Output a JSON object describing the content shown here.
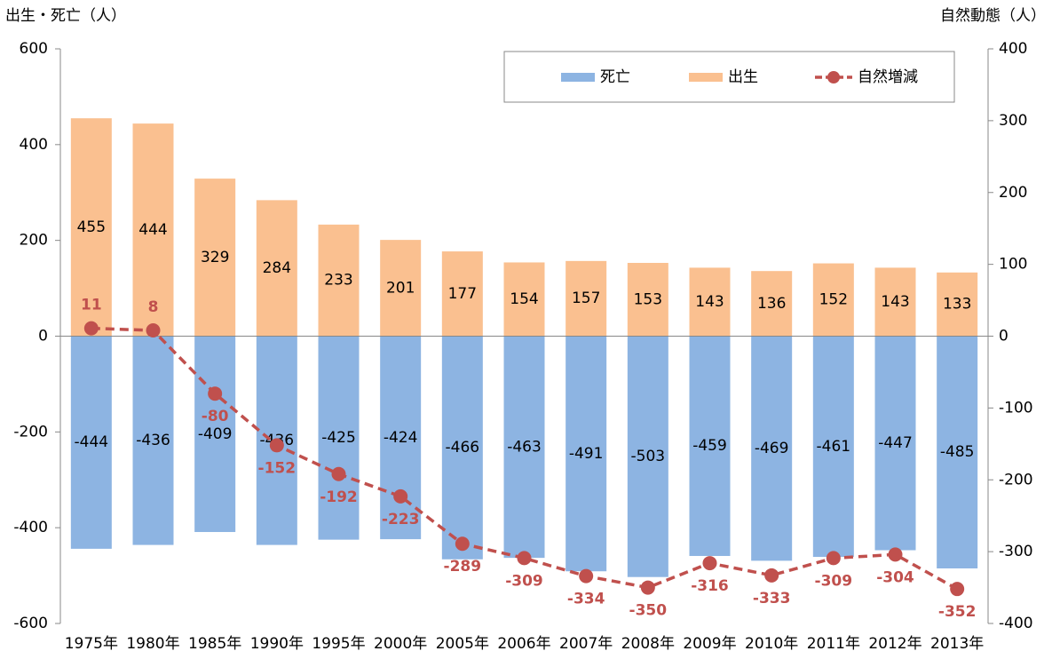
{
  "chart_data": {
    "type": "bar-line",
    "y_axis_label": "出生・死亡（人）",
    "y2_axis_label": "自然動態（人）",
    "categories": [
      "1975年",
      "1980年",
      "1985年",
      "1990年",
      "1995年",
      "2000年",
      "2005年",
      "2006年",
      "2007年",
      "2008年",
      "2009年",
      "2010年",
      "2011年",
      "2012年",
      "2013年"
    ],
    "series": [
      {
        "name": "死亡",
        "color": "#8db4e2",
        "type": "bar",
        "values": [
          -444,
          -436,
          -409,
          -436,
          -425,
          -424,
          -466,
          -463,
          -491,
          -503,
          -459,
          -469,
          -461,
          -447,
          -485
        ]
      },
      {
        "name": "出生",
        "color": "#fac090",
        "type": "bar",
        "values": [
          455,
          444,
          329,
          284,
          233,
          201,
          177,
          154,
          157,
          153,
          143,
          136,
          152,
          143,
          133
        ]
      },
      {
        "name": "自然増減",
        "color": "#c0504d",
        "type": "line",
        "axis": "y2",
        "values": [
          11,
          8,
          -80,
          -152,
          -192,
          -223,
          -289,
          -309,
          -334,
          -350,
          -316,
          -333,
          -309,
          -304,
          -352
        ]
      }
    ],
    "ylim": [
      -600,
      600
    ],
    "yticks": [
      -600,
      -400,
      -200,
      0,
      200,
      400,
      600
    ],
    "y2lim": [
      -400,
      400
    ],
    "y2ticks": [
      -400,
      -300,
      -200,
      -100,
      0,
      100,
      200,
      300,
      400
    ],
    "grid": false,
    "legend": "top-right"
  }
}
